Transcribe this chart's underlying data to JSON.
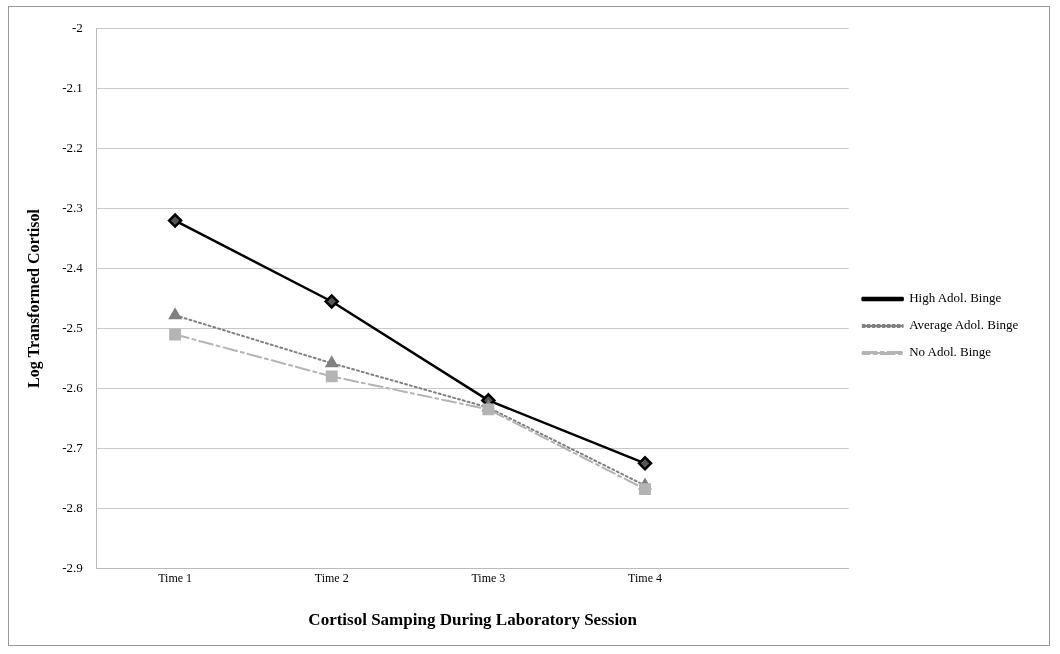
{
  "chart_data": {
    "type": "line",
    "xlabel": "Cortisol Samping During Laboratory Session",
    "ylabel": "Log Transformed Cortisol",
    "categories": [
      "Time 1",
      "Time 2",
      "Time 3",
      "Time 4"
    ],
    "series": [
      {
        "name": "High Adol. Binge",
        "color": "#000000",
        "marker": "diamond",
        "line_style": "solid",
        "values": [
          -2.32,
          -2.455,
          -2.62,
          -2.725
        ]
      },
      {
        "name": "Average Adol. Binge",
        "color": "#808080",
        "marker": "triangle",
        "line_style": "dotted",
        "values": [
          -2.478,
          -2.558,
          -2.632,
          -2.762
        ]
      },
      {
        "name": "No Adol. Binge",
        "color": "#b4b4b4",
        "marker": "square",
        "line_style": "dashed",
        "values": [
          -2.51,
          -2.58,
          -2.635,
          -2.768
        ]
      }
    ],
    "ylim": [
      -2.9,
      -2
    ],
    "yticks": [
      -2.9,
      -2.8,
      -2.7,
      -2.6,
      -2.5,
      -2.4,
      -2.3,
      -2.2,
      -2.1,
      -2
    ],
    "grid": "y",
    "legend": "right"
  }
}
